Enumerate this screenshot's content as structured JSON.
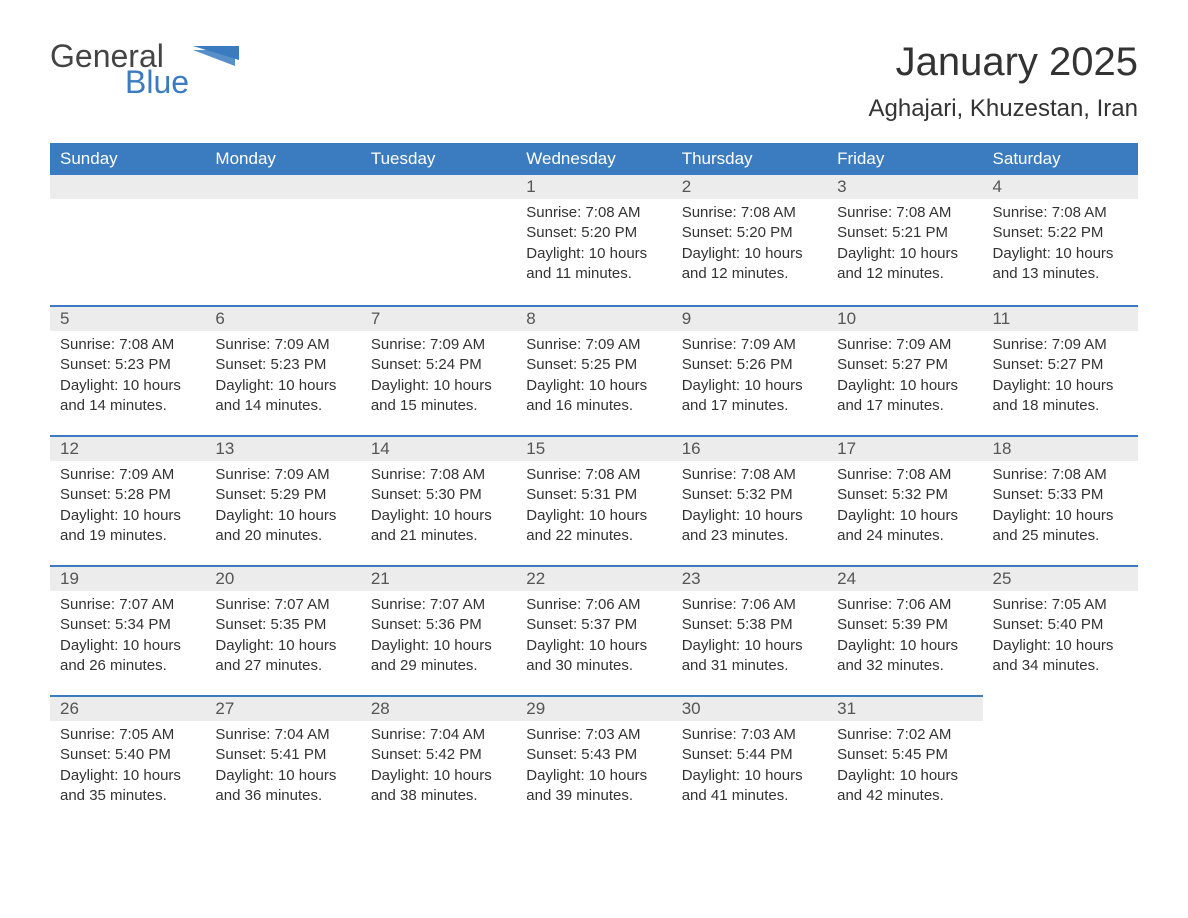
{
  "brand": {
    "part1": "General",
    "part2": "Blue",
    "icon_color": "#3b7bbf"
  },
  "title": "January 2025",
  "location": "Aghajari, Khuzestan, Iran",
  "colors": {
    "header_bg": "#3b7bbf",
    "header_text": "#ffffff",
    "daynum_bg": "#ececec",
    "daynum_text": "#555555",
    "body_text": "#333333",
    "border": "#3b7bbf",
    "page_bg": "#ffffff"
  },
  "fonts": {
    "title_size": 40,
    "location_size": 24,
    "weekday_size": 17,
    "daynum_size": 17,
    "content_size": 15,
    "logo_size": 32
  },
  "weekdays": [
    "Sunday",
    "Monday",
    "Tuesday",
    "Wednesday",
    "Thursday",
    "Friday",
    "Saturday"
  ],
  "weeks": [
    [
      null,
      null,
      null,
      {
        "day": "1",
        "sunrise": "7:08 AM",
        "sunset": "5:20 PM",
        "daylight": "10 hours and 11 minutes."
      },
      {
        "day": "2",
        "sunrise": "7:08 AM",
        "sunset": "5:20 PM",
        "daylight": "10 hours and 12 minutes."
      },
      {
        "day": "3",
        "sunrise": "7:08 AM",
        "sunset": "5:21 PM",
        "daylight": "10 hours and 12 minutes."
      },
      {
        "day": "4",
        "sunrise": "7:08 AM",
        "sunset": "5:22 PM",
        "daylight": "10 hours and 13 minutes."
      }
    ],
    [
      {
        "day": "5",
        "sunrise": "7:08 AM",
        "sunset": "5:23 PM",
        "daylight": "10 hours and 14 minutes."
      },
      {
        "day": "6",
        "sunrise": "7:09 AM",
        "sunset": "5:23 PM",
        "daylight": "10 hours and 14 minutes."
      },
      {
        "day": "7",
        "sunrise": "7:09 AM",
        "sunset": "5:24 PM",
        "daylight": "10 hours and 15 minutes."
      },
      {
        "day": "8",
        "sunrise": "7:09 AM",
        "sunset": "5:25 PM",
        "daylight": "10 hours and 16 minutes."
      },
      {
        "day": "9",
        "sunrise": "7:09 AM",
        "sunset": "5:26 PM",
        "daylight": "10 hours and 17 minutes."
      },
      {
        "day": "10",
        "sunrise": "7:09 AM",
        "sunset": "5:27 PM",
        "daylight": "10 hours and 17 minutes."
      },
      {
        "day": "11",
        "sunrise": "7:09 AM",
        "sunset": "5:27 PM",
        "daylight": "10 hours and 18 minutes."
      }
    ],
    [
      {
        "day": "12",
        "sunrise": "7:09 AM",
        "sunset": "5:28 PM",
        "daylight": "10 hours and 19 minutes."
      },
      {
        "day": "13",
        "sunrise": "7:09 AM",
        "sunset": "5:29 PM",
        "daylight": "10 hours and 20 minutes."
      },
      {
        "day": "14",
        "sunrise": "7:08 AM",
        "sunset": "5:30 PM",
        "daylight": "10 hours and 21 minutes."
      },
      {
        "day": "15",
        "sunrise": "7:08 AM",
        "sunset": "5:31 PM",
        "daylight": "10 hours and 22 minutes."
      },
      {
        "day": "16",
        "sunrise": "7:08 AM",
        "sunset": "5:32 PM",
        "daylight": "10 hours and 23 minutes."
      },
      {
        "day": "17",
        "sunrise": "7:08 AM",
        "sunset": "5:32 PM",
        "daylight": "10 hours and 24 minutes."
      },
      {
        "day": "18",
        "sunrise": "7:08 AM",
        "sunset": "5:33 PM",
        "daylight": "10 hours and 25 minutes."
      }
    ],
    [
      {
        "day": "19",
        "sunrise": "7:07 AM",
        "sunset": "5:34 PM",
        "daylight": "10 hours and 26 minutes."
      },
      {
        "day": "20",
        "sunrise": "7:07 AM",
        "sunset": "5:35 PM",
        "daylight": "10 hours and 27 minutes."
      },
      {
        "day": "21",
        "sunrise": "7:07 AM",
        "sunset": "5:36 PM",
        "daylight": "10 hours and 29 minutes."
      },
      {
        "day": "22",
        "sunrise": "7:06 AM",
        "sunset": "5:37 PM",
        "daylight": "10 hours and 30 minutes."
      },
      {
        "day": "23",
        "sunrise": "7:06 AM",
        "sunset": "5:38 PM",
        "daylight": "10 hours and 31 minutes."
      },
      {
        "day": "24",
        "sunrise": "7:06 AM",
        "sunset": "5:39 PM",
        "daylight": "10 hours and 32 minutes."
      },
      {
        "day": "25",
        "sunrise": "7:05 AM",
        "sunset": "5:40 PM",
        "daylight": "10 hours and 34 minutes."
      }
    ],
    [
      {
        "day": "26",
        "sunrise": "7:05 AM",
        "sunset": "5:40 PM",
        "daylight": "10 hours and 35 minutes."
      },
      {
        "day": "27",
        "sunrise": "7:04 AM",
        "sunset": "5:41 PM",
        "daylight": "10 hours and 36 minutes."
      },
      {
        "day": "28",
        "sunrise": "7:04 AM",
        "sunset": "5:42 PM",
        "daylight": "10 hours and 38 minutes."
      },
      {
        "day": "29",
        "sunrise": "7:03 AM",
        "sunset": "5:43 PM",
        "daylight": "10 hours and 39 minutes."
      },
      {
        "day": "30",
        "sunrise": "7:03 AM",
        "sunset": "5:44 PM",
        "daylight": "10 hours and 41 minutes."
      },
      {
        "day": "31",
        "sunrise": "7:02 AM",
        "sunset": "5:45 PM",
        "daylight": "10 hours and 42 minutes."
      },
      null
    ]
  ],
  "labels": {
    "sunrise": "Sunrise: ",
    "sunset": "Sunset: ",
    "daylight": "Daylight: "
  }
}
